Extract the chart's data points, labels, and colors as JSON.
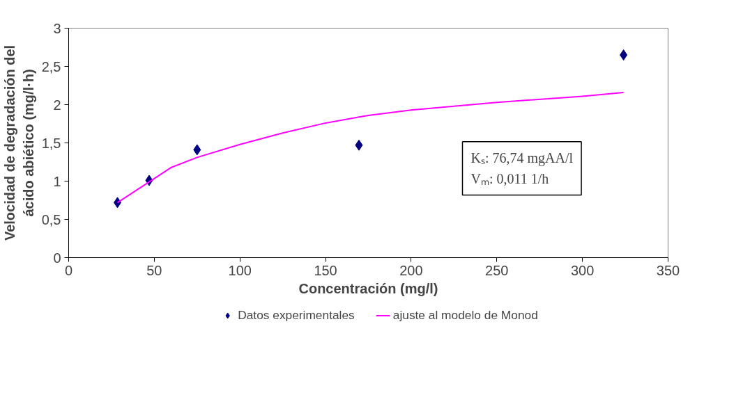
{
  "chart_data": {
    "type": "scatter",
    "xlabel": "Concentración (mg/l)",
    "ylabel": "Velocidad de degradación del\nácido abiético (mg/l·h)",
    "xlim": [
      0,
      350
    ],
    "xticks": [
      0,
      50,
      100,
      150,
      200,
      250,
      300,
      350
    ],
    "ylim": [
      0,
      3
    ],
    "yticks": [
      0,
      {
        "value": 0.5,
        "label": "0,5"
      },
      1,
      {
        "value": 1.5,
        "label": "1,5"
      },
      2,
      {
        "value": 2.5,
        "label": "2,5"
      },
      3
    ],
    "grid": false,
    "legend": "bottom",
    "series": [
      {
        "name": "Datos experimentales",
        "marker": "diamond",
        "color": "#000080",
        "x": [
          28.5,
          47,
          75,
          169.5,
          324
        ],
        "values": [
          0.72,
          1.01,
          1.41,
          1.47,
          2.65
        ]
      },
      {
        "name": "ajuste al modelo de Monod",
        "type": "line",
        "color": "#ff00ff",
        "x": [
          28.5,
          47,
          60,
          75,
          100,
          125,
          150,
          175,
          200,
          250,
          300,
          324
        ],
        "values": [
          0.72,
          0.99,
          1.18,
          1.31,
          1.48,
          1.63,
          1.76,
          1.86,
          1.93,
          2.03,
          2.11,
          2.16
        ]
      }
    ],
    "annotations": [
      "Kₛ: 76,74 mgAA/l\nVₘ: 0,011 1/h"
    ]
  }
}
